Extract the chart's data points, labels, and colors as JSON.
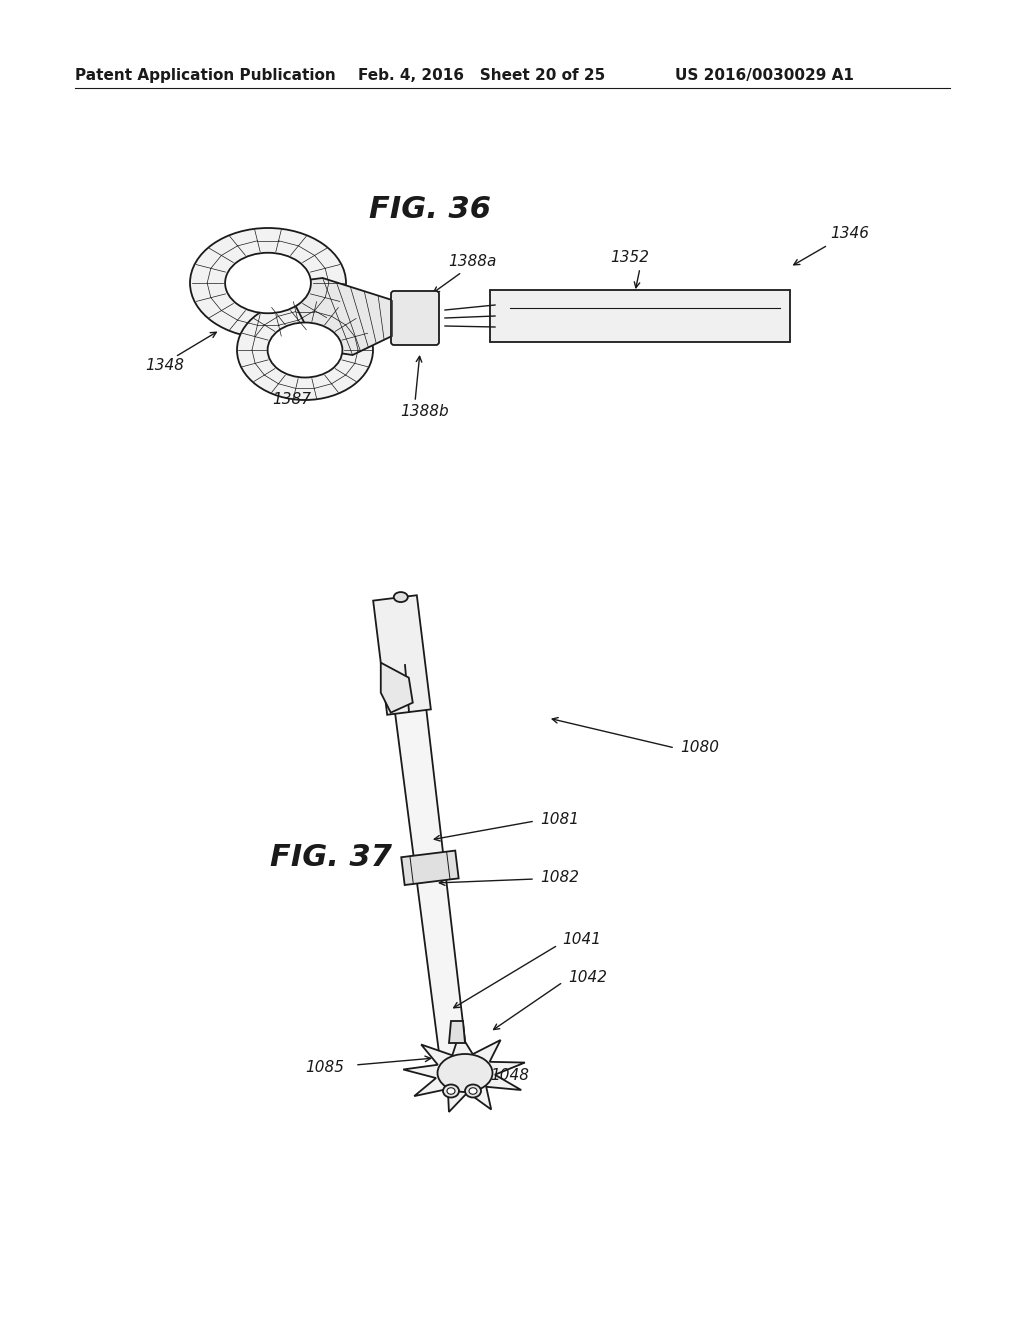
{
  "background_color": "#ffffff",
  "header": {
    "left_text": "Patent Application Publication",
    "center_text": "Feb. 4, 2016   Sheet 20 of 25",
    "right_text": "US 2016/0030029 A1",
    "fontsize": 11
  },
  "fig36_title": "FIG. 36",
  "fig37_title": "FIG. 37"
}
